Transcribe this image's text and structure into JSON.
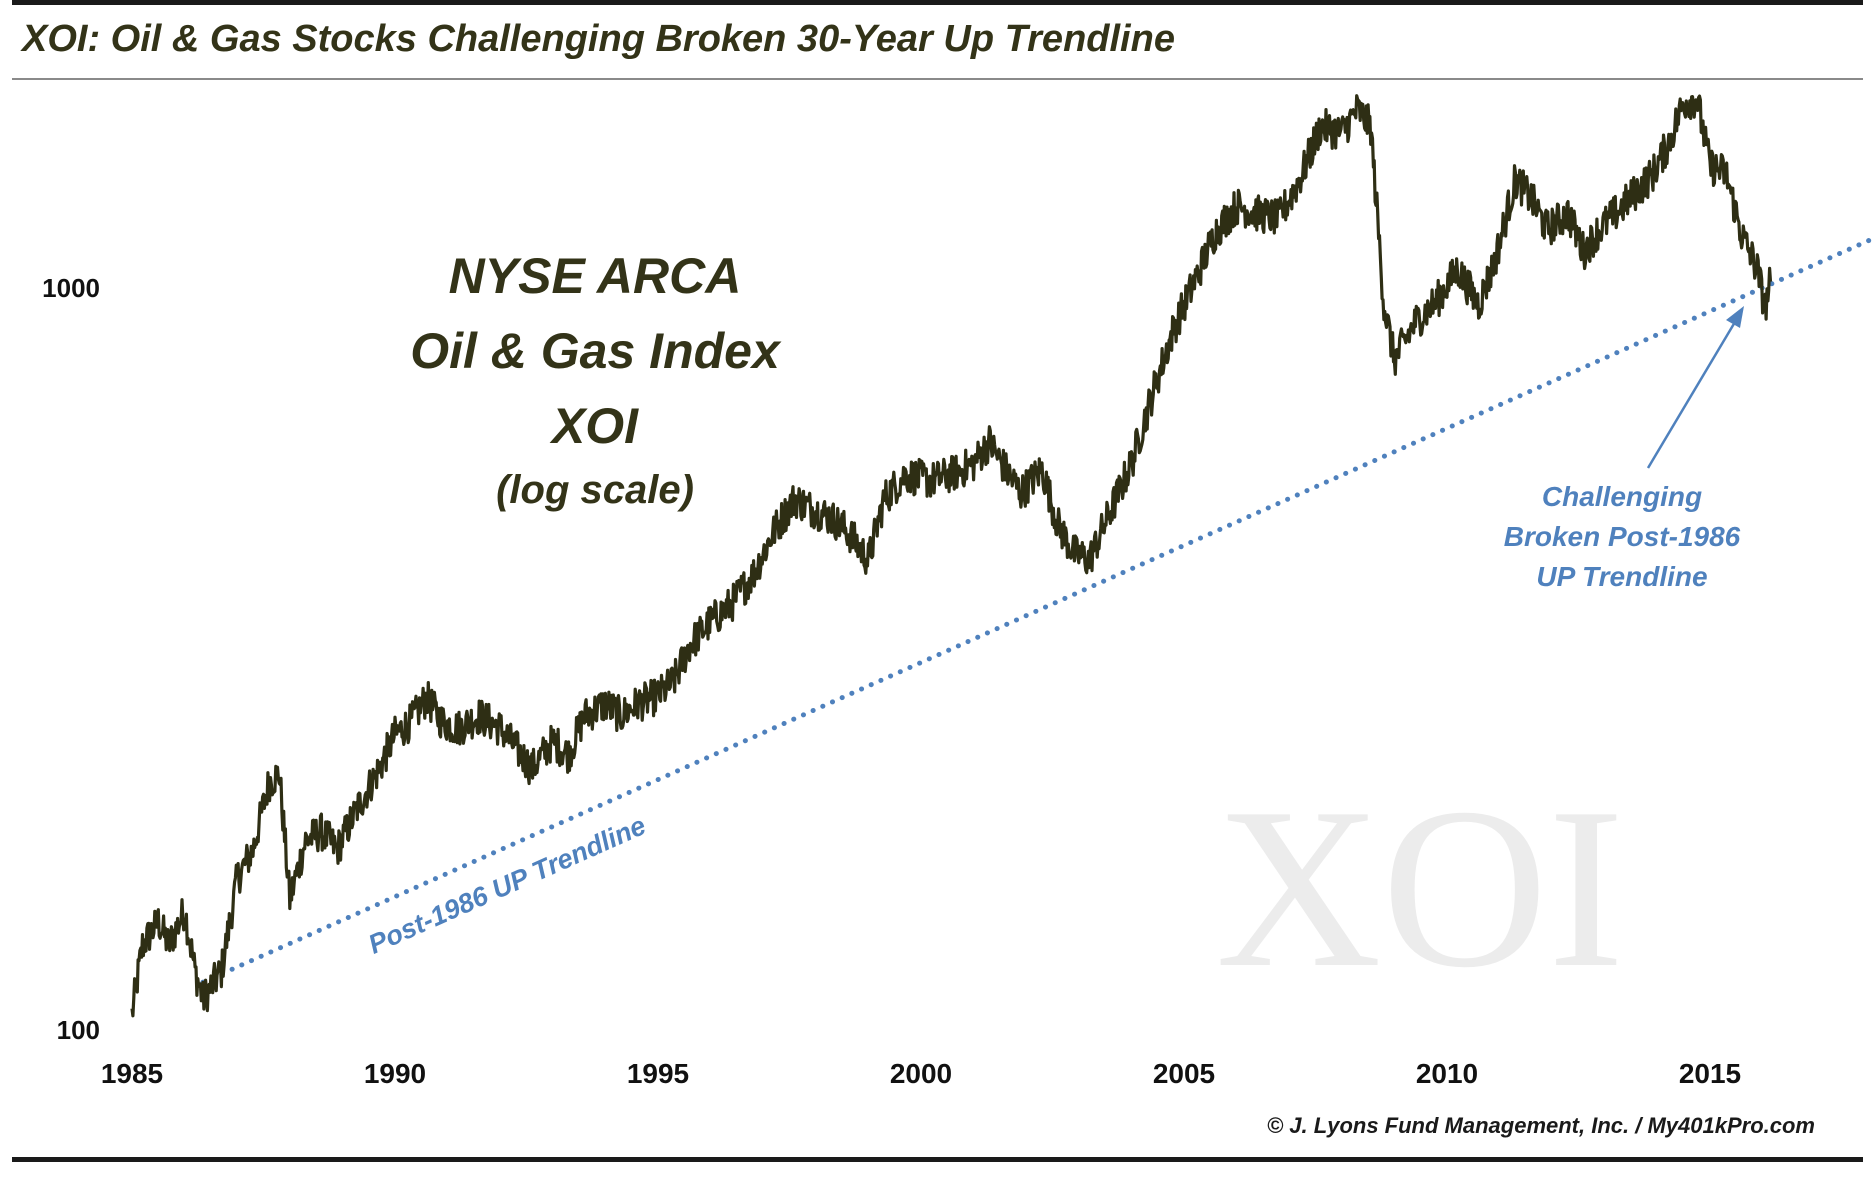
{
  "title": "XOI: Oil & Gas Stocks Challenging Broken 30-Year Up Trendline",
  "credit": "© J. Lyons Fund Management, Inc. / My401kPro.com",
  "colors": {
    "price": "#2e2e14",
    "trend": "#4f81bd",
    "title": "#333318",
    "watermark": "#ececec"
  },
  "chart_data": {
    "type": "line",
    "title": "NYSE ARCA Oil & Gas Index XOI (log scale)",
    "title_lines": [
      "NYSE ARCA",
      "Oil & Gas Index",
      "XOI",
      "(log scale)"
    ],
    "watermark": "XOI",
    "y_scale": "log",
    "ylim": [
      100,
      2400
    ],
    "xlim": [
      1985,
      2018.5
    ],
    "x_ticks": [
      1985,
      1990,
      1995,
      2000,
      2005,
      2010,
      2015
    ],
    "y_ticks": [
      100,
      1000
    ],
    "grid": false,
    "series": [
      {
        "kind": "price",
        "points": [
          [
            1985.0,
            105
          ],
          [
            1985.2,
            130
          ],
          [
            1985.5,
            140
          ],
          [
            1985.7,
            130
          ],
          [
            1986.0,
            145
          ],
          [
            1986.2,
            120
          ],
          [
            1986.35,
            110
          ],
          [
            1986.7,
            120
          ],
          [
            1987.0,
            160
          ],
          [
            1987.3,
            175
          ],
          [
            1987.6,
            215
          ],
          [
            1987.8,
            222
          ],
          [
            1988.0,
            150
          ],
          [
            1988.3,
            180
          ],
          [
            1988.6,
            185
          ],
          [
            1988.9,
            175
          ],
          [
            1989.3,
            200
          ],
          [
            1989.7,
            225
          ],
          [
            1990.0,
            250
          ],
          [
            1990.3,
            260
          ],
          [
            1990.6,
            280
          ],
          [
            1990.9,
            260
          ],
          [
            1991.2,
            255
          ],
          [
            1991.6,
            265
          ],
          [
            1992.0,
            255
          ],
          [
            1992.3,
            240
          ],
          [
            1992.6,
            225
          ],
          [
            1993.0,
            245
          ],
          [
            1993.3,
            235
          ],
          [
            1993.6,
            265
          ],
          [
            1994.0,
            275
          ],
          [
            1994.3,
            265
          ],
          [
            1994.6,
            275
          ],
          [
            1995.0,
            282
          ],
          [
            1995.3,
            295
          ],
          [
            1995.6,
            330
          ],
          [
            1996.0,
            355
          ],
          [
            1996.4,
            375
          ],
          [
            1996.8,
            410
          ],
          [
            1997.2,
            470
          ],
          [
            1997.6,
            520
          ],
          [
            1997.9,
            505
          ],
          [
            1998.3,
            490
          ],
          [
            1998.6,
            470
          ],
          [
            1999.0,
            430
          ],
          [
            1999.3,
            520
          ],
          [
            1999.7,
            560
          ],
          [
            2000.2,
            550
          ],
          [
            2000.7,
            565
          ],
          [
            2001.0,
            580
          ],
          [
            2001.3,
            620
          ],
          [
            2001.6,
            570
          ],
          [
            2001.9,
            530
          ],
          [
            2002.3,
            570
          ],
          [
            2002.6,
            480
          ],
          [
            2002.9,
            440
          ],
          [
            2003.2,
            430
          ],
          [
            2003.6,
            500
          ],
          [
            2004.0,
            580
          ],
          [
            2004.4,
            720
          ],
          [
            2004.8,
            880
          ],
          [
            2005.2,
            1020
          ],
          [
            2005.6,
            1190
          ],
          [
            2006.0,
            1290
          ],
          [
            2006.4,
            1260
          ],
          [
            2006.8,
            1240
          ],
          [
            2007.2,
            1400
          ],
          [
            2007.6,
            1650
          ],
          [
            2008.0,
            1620
          ],
          [
            2008.3,
            1740
          ],
          [
            2008.55,
            1650
          ],
          [
            2008.8,
            950
          ],
          [
            2009.0,
            800
          ],
          [
            2009.4,
            900
          ],
          [
            2009.8,
            960
          ],
          [
            2010.2,
            1060
          ],
          [
            2010.6,
            950
          ],
          [
            2010.9,
            1080
          ],
          [
            2011.3,
            1400
          ],
          [
            2011.6,
            1320
          ],
          [
            2011.9,
            1200
          ],
          [
            2012.3,
            1260
          ],
          [
            2012.6,
            1120
          ],
          [
            2012.9,
            1200
          ],
          [
            2013.3,
            1280
          ],
          [
            2013.6,
            1350
          ],
          [
            2013.9,
            1420
          ],
          [
            2014.2,
            1560
          ],
          [
            2014.5,
            1780
          ],
          [
            2014.75,
            1800
          ],
          [
            2015.0,
            1460
          ],
          [
            2015.3,
            1430
          ],
          [
            2015.6,
            1180
          ],
          [
            2015.9,
            1060
          ],
          [
            2016.05,
            940
          ],
          [
            2016.15,
            1020
          ]
        ]
      },
      {
        "kind": "trendline",
        "name": "Post-1986 UP Trendline",
        "points": [
          [
            1986.35,
            116
          ],
          [
            2018.5,
            1200
          ]
        ]
      }
    ],
    "annotations": [
      {
        "text": "Post-1986 UP Trendline"
      },
      {
        "lines": [
          "Challenging",
          "Broken Post-1986",
          "UP Trendline"
        ]
      }
    ]
  }
}
